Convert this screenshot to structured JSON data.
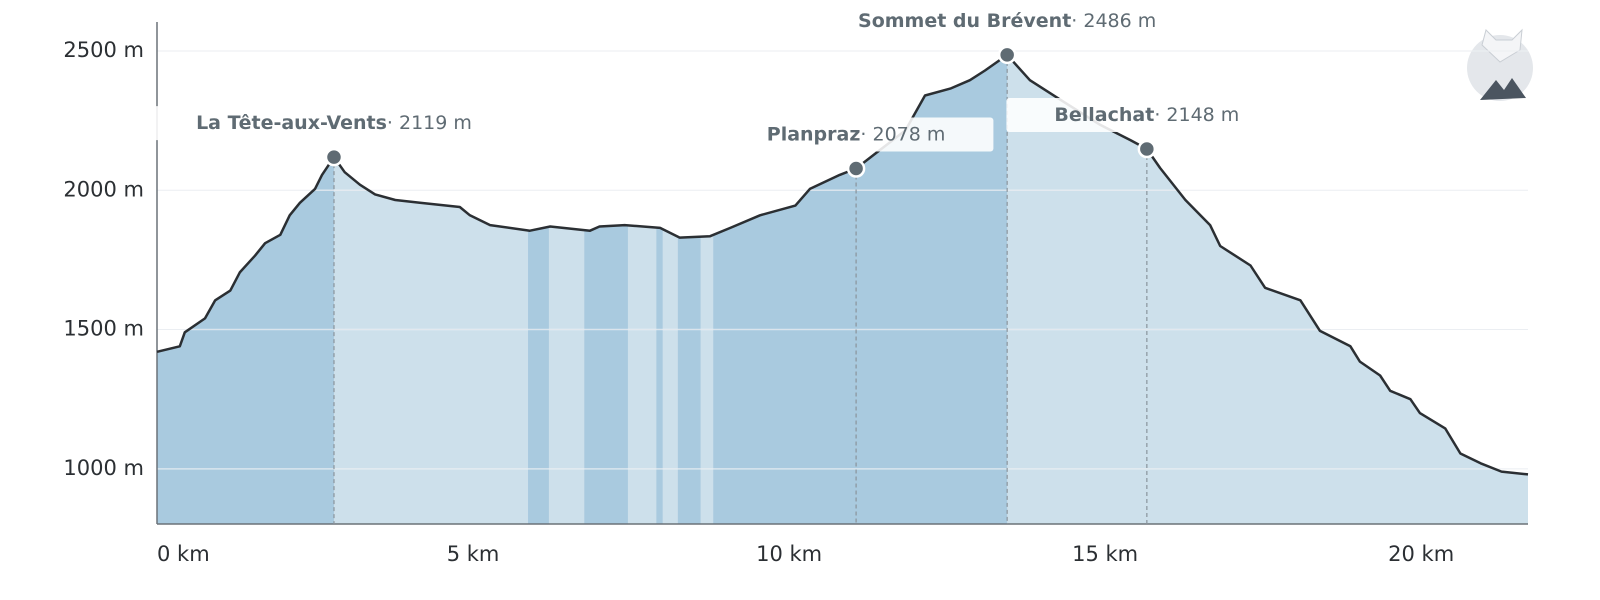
{
  "chart_data": {
    "type": "elevation",
    "x": [
      0,
      0.36,
      0.44,
      0.76,
      0.92,
      1.16,
      1.31,
      1.55,
      1.71,
      1.95,
      2.1,
      2.26,
      2.5,
      2.61,
      2.8,
      2.97,
      3.21,
      3.45,
      3.77,
      4.16,
      4.79,
      4.95,
      5.27,
      5.9,
      6.22,
      6.85,
      7.0,
      7.4,
      7.96,
      8.27,
      8.75,
      9.07,
      9.54,
      10.1,
      10.33,
      10.8,
      11.06,
      11.44,
      11.84,
      12.15,
      12.55,
      12.86,
      13.1,
      13.45,
      13.81,
      14.29,
      14.92,
      15.4,
      15.66,
      15.87,
      16.27,
      16.66,
      16.82,
      17.3,
      17.53,
      18.09,
      18.4,
      18.88,
      19.03,
      19.35,
      19.51,
      19.83,
      19.98,
      20.38,
      20.62,
      20.94,
      21.27,
      21.69
    ],
    "values": [
      1420,
      1440,
      1490,
      1540,
      1605,
      1640,
      1705,
      1765,
      1810,
      1840,
      1910,
      1955,
      2005,
      2055,
      2119,
      2065,
      2020,
      1985,
      1965,
      1955,
      1940,
      1910,
      1875,
      1855,
      1870,
      1855,
      1870,
      1875,
      1865,
      1830,
      1835,
      1865,
      1910,
      1945,
      2005,
      2055,
      2078,
      2145,
      2215,
      2340,
      2365,
      2395,
      2430,
      2486,
      2395,
      2325,
      2235,
      2180,
      2148,
      2080,
      1965,
      1875,
      1800,
      1730,
      1650,
      1605,
      1495,
      1440,
      1385,
      1335,
      1280,
      1250,
      1200,
      1145,
      1055,
      1020,
      990,
      980
    ],
    "color": "#2b2f33",
    "fill_color": "#cde0eb",
    "ascent_color": "#a9cadf",
    "ascent_ranges": [
      [
        0,
        2.8
      ],
      [
        5.87,
        6.2
      ],
      [
        6.76,
        7.45
      ],
      [
        7.9,
        8.0
      ],
      [
        8.24,
        8.6
      ],
      [
        8.8,
        13.45
      ]
    ],
    "xlim": [
      0,
      21.69
    ],
    "ylim": [
      802,
      2604
    ],
    "xticks": [
      {
        "value": 0,
        "label": "0 km"
      },
      {
        "value": 5,
        "label": "5 km"
      },
      {
        "value": 10,
        "label": "10 km"
      },
      {
        "value": 15,
        "label": "15 km"
      },
      {
        "value": 20,
        "label": "20 km"
      }
    ],
    "yticks": [
      {
        "value": 1000,
        "label": "1000 m"
      },
      {
        "value": 1500,
        "label": "1500 m"
      },
      {
        "value": 2000,
        "label": "2000 m"
      },
      {
        "value": 2500,
        "label": "2500 m"
      }
    ],
    "grid": true,
    "waypoints": [
      {
        "name": "La Tête-aux-Vents",
        "x": 2.8,
        "value": 2119,
        "label": "· 2119 m"
      },
      {
        "name": "Planpraz",
        "x": 11.06,
        "value": 2078,
        "label": "· 2078 m"
      },
      {
        "name": "Sommet du Brévent",
        "x": 13.45,
        "value": 2486,
        "label": "· 2486 m"
      },
      {
        "name": "Bellachat",
        "x": 15.66,
        "value": 2148,
        "label": "· 2148 m"
      }
    ]
  }
}
